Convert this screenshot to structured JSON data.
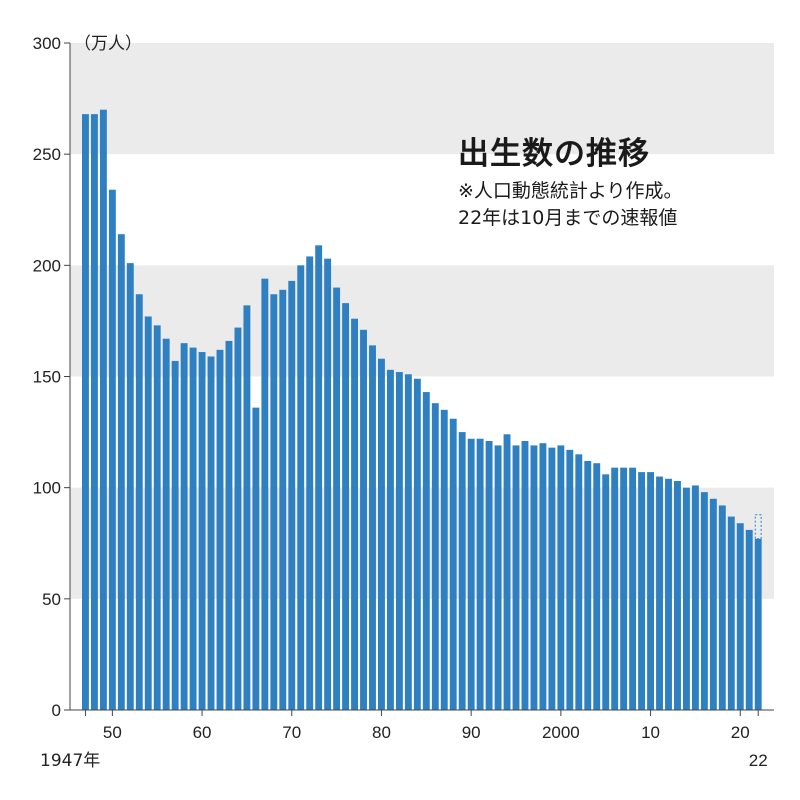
{
  "chart_data": {
    "type": "bar",
    "title": "出生数の推移",
    "notes": [
      "※人口動態統計より作成。",
      "22年は10月までの速報値"
    ],
    "ylabel": "（万人）",
    "ylim": [
      0,
      300
    ],
    "yticks": [
      0,
      50,
      100,
      150,
      200,
      250,
      300
    ],
    "xticks": [
      {
        "year": 1947,
        "label": "1947年"
      },
      {
        "year": 1950,
        "label": "50"
      },
      {
        "year": 1960,
        "label": "60"
      },
      {
        "year": 1970,
        "label": "70"
      },
      {
        "year": 1980,
        "label": "80"
      },
      {
        "year": 1990,
        "label": "90"
      },
      {
        "year": 2000,
        "label": "2000"
      },
      {
        "year": 2010,
        "label": "10"
      },
      {
        "year": 2020,
        "label": "20"
      },
      {
        "year": 2022,
        "label": "22"
      }
    ],
    "x": [
      1947,
      1948,
      1949,
      1950,
      1951,
      1952,
      1953,
      1954,
      1955,
      1956,
      1957,
      1958,
      1959,
      1960,
      1961,
      1962,
      1963,
      1964,
      1965,
      1966,
      1967,
      1968,
      1969,
      1970,
      1971,
      1972,
      1973,
      1974,
      1975,
      1976,
      1977,
      1978,
      1979,
      1980,
      1981,
      1982,
      1983,
      1984,
      1985,
      1986,
      1987,
      1988,
      1989,
      1990,
      1991,
      1992,
      1993,
      1994,
      1995,
      1996,
      1997,
      1998,
      1999,
      2000,
      2001,
      2002,
      2003,
      2004,
      2005,
      2006,
      2007,
      2008,
      2009,
      2010,
      2011,
      2012,
      2013,
      2014,
      2015,
      2016,
      2017,
      2018,
      2019,
      2020,
      2021,
      2022
    ],
    "values": [
      268,
      268,
      270,
      234,
      214,
      201,
      187,
      177,
      173,
      167,
      157,
      165,
      163,
      161,
      159,
      162,
      166,
      172,
      182,
      136,
      194,
      187,
      189,
      193,
      200,
      204,
      209,
      203,
      190,
      183,
      176,
      171,
      164,
      158,
      153,
      152,
      151,
      149,
      143,
      138,
      135,
      131,
      125,
      122,
      122,
      121,
      119,
      124,
      119,
      121,
      119,
      120,
      118,
      119,
      117,
      115,
      112,
      111,
      106,
      109,
      109,
      109,
      107,
      107,
      105,
      104,
      103,
      100,
      101,
      98,
      95,
      92,
      87,
      84,
      81,
      77
    ],
    "partial_year": 2022,
    "colors": {
      "bar": "#2f80c1",
      "band": "#ebebeb",
      "axis": "#444444"
    }
  }
}
